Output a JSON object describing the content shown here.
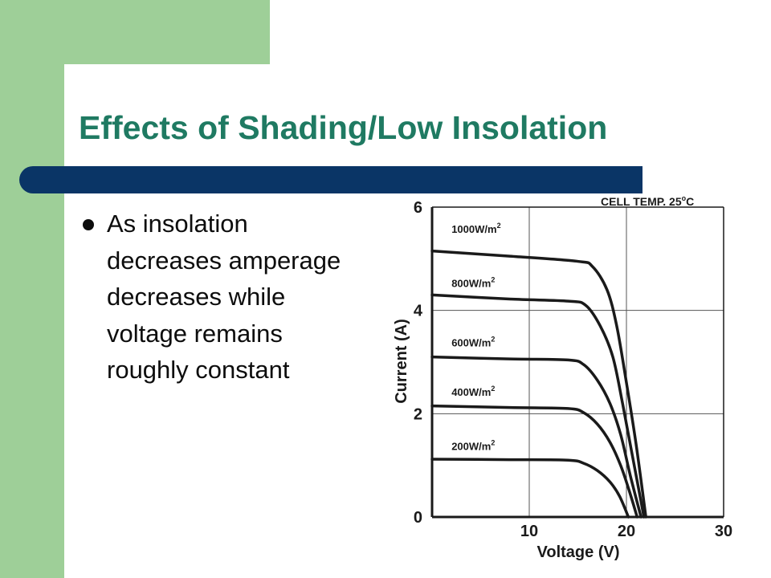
{
  "slide": {
    "title": "Effects of Shading/Low Insolation",
    "bullet": "As insolation decreases amperage decreases while voltage remains roughly constant"
  },
  "colors": {
    "side_band": "#9ecf98",
    "title": "#1f7a62",
    "divider_bar": "#0a3566",
    "curve": "#1a1a1a"
  },
  "chart_data": {
    "type": "line",
    "title": "",
    "annotation": {
      "text": "CELL TEMP. 25",
      "superscript": "o",
      "unit": "C"
    },
    "xlabel": "Voltage (V)",
    "ylabel": "Current (A)",
    "xlim": [
      0,
      30
    ],
    "ylim": [
      0,
      6
    ],
    "x_ticks": [
      10,
      20,
      30
    ],
    "y_ticks": [
      0,
      2,
      4,
      6
    ],
    "grid": true,
    "series": [
      {
        "name": "1000W/m",
        "sup": "2",
        "label_at": [
          2,
          5.5
        ],
        "points": [
          [
            0,
            5.15
          ],
          [
            8,
            5.05
          ],
          [
            15,
            4.95
          ],
          [
            16.5,
            4.85
          ],
          [
            18,
            4.4
          ],
          [
            19,
            3.7
          ],
          [
            20,
            2.6
          ],
          [
            21,
            1.4
          ],
          [
            22,
            0
          ]
        ]
      },
      {
        "name": "800W/m",
        "sup": "2",
        "label_at": [
          2,
          4.45
        ],
        "points": [
          [
            0,
            4.3
          ],
          [
            8,
            4.22
          ],
          [
            14,
            4.18
          ],
          [
            15.8,
            4.1
          ],
          [
            17.3,
            3.7
          ],
          [
            18.6,
            3.1
          ],
          [
            19.6,
            2.2
          ],
          [
            20.6,
            1.2
          ],
          [
            21.8,
            0
          ]
        ]
      },
      {
        "name": "600W/m",
        "sup": "2",
        "label_at": [
          2,
          3.3
        ],
        "points": [
          [
            0,
            3.1
          ],
          [
            8,
            3.06
          ],
          [
            14,
            3.04
          ],
          [
            15.6,
            2.95
          ],
          [
            17,
            2.65
          ],
          [
            18.3,
            2.2
          ],
          [
            19.4,
            1.6
          ],
          [
            20.4,
            0.8
          ],
          [
            21.5,
            0
          ]
        ]
      },
      {
        "name": "400W/m",
        "sup": "2",
        "label_at": [
          2,
          2.35
        ],
        "points": [
          [
            0,
            2.15
          ],
          [
            8,
            2.12
          ],
          [
            14,
            2.1
          ],
          [
            15.6,
            2.02
          ],
          [
            17,
            1.8
          ],
          [
            18.3,
            1.45
          ],
          [
            19.4,
            1.0
          ],
          [
            20.3,
            0.5
          ],
          [
            21.1,
            0
          ]
        ]
      },
      {
        "name": "200W/m",
        "sup": "2",
        "label_at": [
          2,
          1.3
        ],
        "points": [
          [
            0,
            1.12
          ],
          [
            8,
            1.11
          ],
          [
            14,
            1.1
          ],
          [
            15.6,
            1.04
          ],
          [
            17,
            0.9
          ],
          [
            18.3,
            0.68
          ],
          [
            19.3,
            0.4
          ],
          [
            20.2,
            0
          ]
        ]
      }
    ]
  }
}
